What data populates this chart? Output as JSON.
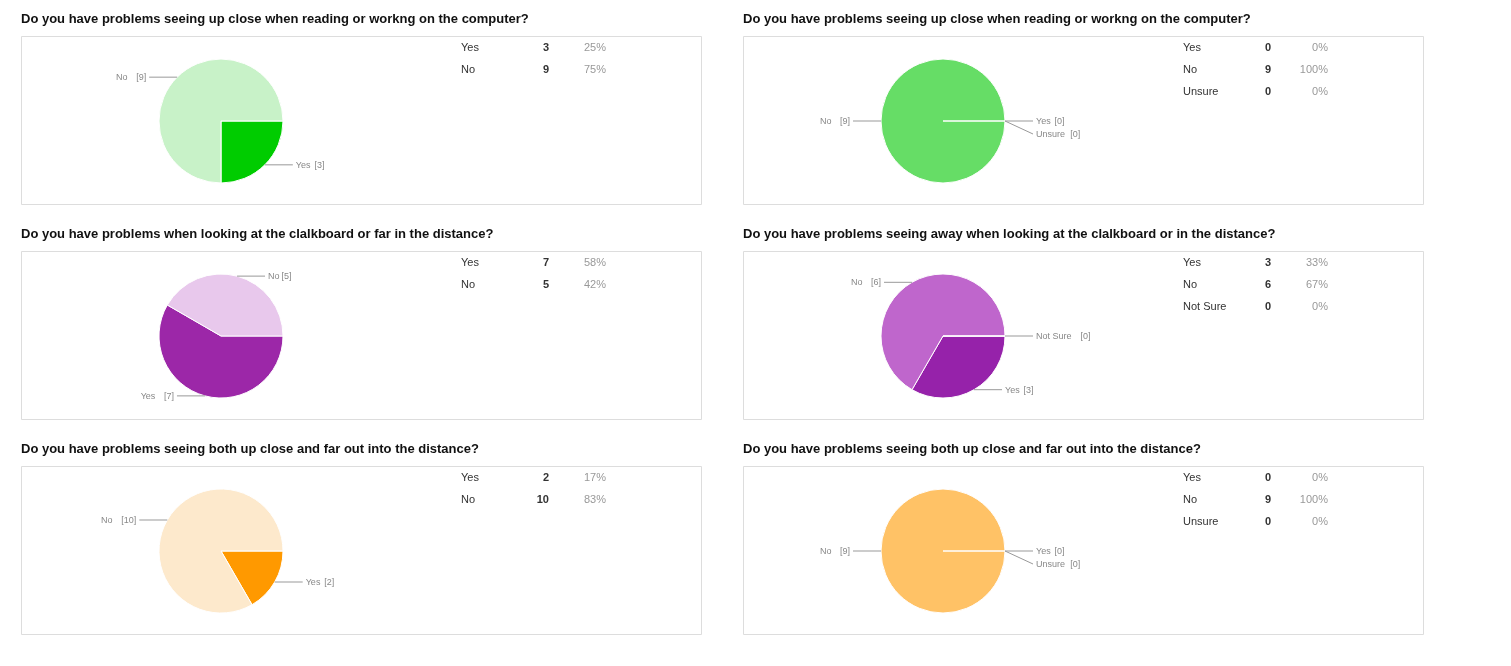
{
  "chart_data": [
    {
      "type": "pie",
      "title": "Do you have problems seeing up close when reading or workng on the computer?",
      "categories": [
        "Yes",
        "No"
      ],
      "values": [
        3,
        9
      ],
      "colors": [
        "#00cc00",
        "#c8f2c8"
      ],
      "value_labels": [
        "[3]",
        "[9]"
      ],
      "annotations": [
        "3",
        "25%",
        "9",
        "75%"
      ]
    },
    {
      "type": "pie",
      "title": "Do you have problems seeing up close when reading or workng on the computer?",
      "categories": [
        "Yes",
        "No",
        "Unsure"
      ],
      "values": [
        0,
        9,
        0
      ],
      "colors": [
        "#2fa82f",
        "#66dd66",
        "#a0a0a0"
      ],
      "value_labels": [
        "[0]",
        "[9]",
        "[0]"
      ],
      "annotations": [
        "0",
        "0%",
        "9",
        "100%",
        "0",
        "0%"
      ]
    },
    {
      "type": "pie",
      "title": "Do you have problems when looking at the clalkboard or far in the distance?",
      "categories": [
        "Yes",
        "No"
      ],
      "values": [
        7,
        5
      ],
      "colors": [
        "#9c27a8",
        "#e8c8ec"
      ],
      "value_labels": [
        "[7]",
        "[5]"
      ],
      "annotations": [
        "7",
        "58%",
        "5",
        "42%"
      ]
    },
    {
      "type": "pie",
      "title": "Do you have problems seeing away when looking at the clalkboard or in the distance?",
      "categories": [
        "Yes",
        "No",
        "Not Sure"
      ],
      "values": [
        3,
        6,
        0
      ],
      "colors": [
        "#9622aa",
        "#bf66cc",
        "#a0a0a0"
      ],
      "value_labels": [
        "[3]",
        "[6]",
        "[0]"
      ],
      "annotations": [
        "3",
        "33%",
        "6",
        "67%",
        "0",
        "0%"
      ]
    },
    {
      "type": "pie",
      "title": "Do you have problems seeing both up close and far out into the distance?",
      "categories": [
        "Yes",
        "No"
      ],
      "values": [
        2,
        10
      ],
      "colors": [
        "#ff9900",
        "#fde9cc"
      ],
      "value_labels": [
        "[2]",
        "[10]"
      ],
      "annotations": [
        "2",
        "17%",
        "10",
        "83%"
      ]
    },
    {
      "type": "pie",
      "title": "Do you have problems seeing both up close and far out into the distance?",
      "categories": [
        "Yes",
        "No",
        "Unsure"
      ],
      "values": [
        0,
        9,
        0
      ],
      "colors": [
        "#e0a040",
        "#ffc266",
        "#a0a0a0"
      ],
      "value_labels": [
        "[0]",
        "[9]",
        "[0]"
      ],
      "annotations": [
        "0",
        "0%",
        "9",
        "100%",
        "0",
        "0%"
      ]
    }
  ]
}
